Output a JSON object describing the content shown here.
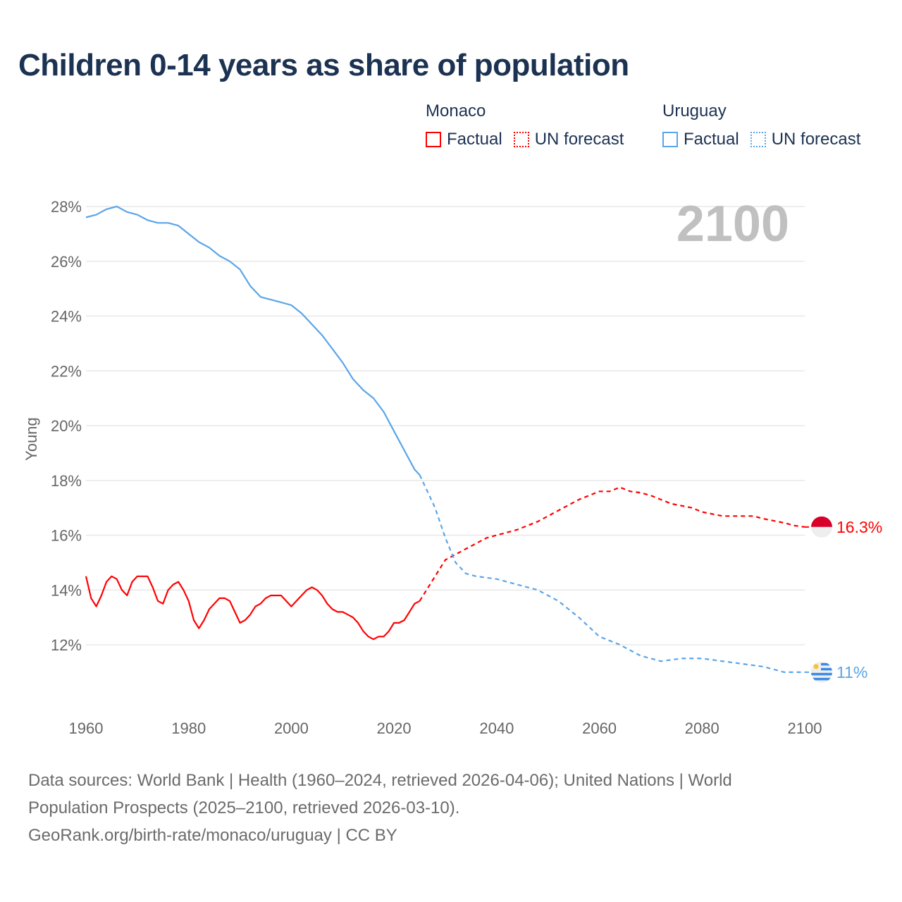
{
  "title": "Children 0-14 years as share of population",
  "legend": {
    "groups": [
      {
        "name": "Monaco",
        "color": "#ff0000",
        "items": [
          "Factual",
          "UN forecast"
        ]
      },
      {
        "name": "Uruguay",
        "color": "#5aa5e8",
        "items": [
          "Factual",
          "UN forecast"
        ]
      }
    ]
  },
  "year_label": "2100",
  "footer": {
    "line1": "Data sources: World Bank | Health (1960–2024, retrieved 2026-04-06); United Nations | World",
    "line2": "Population Prospects (2025–2100, retrieved 2026-03-10).",
    "line3": "GeoRank.org/birth-rate/monaco/uruguay | CC BY"
  },
  "chart_data": {
    "type": "line",
    "title": "Children 0-14 years as share of population",
    "xlabel": "",
    "ylabel": "Young",
    "xlim": [
      1960,
      2100
    ],
    "ylim": [
      10.5,
      28.5
    ],
    "x_ticks": [
      "1960",
      "1980",
      "2000",
      "2020",
      "2040",
      "2060",
      "2080",
      "2100"
    ],
    "y_ticks": [
      "12%",
      "14%",
      "16%",
      "18%",
      "20%",
      "22%",
      "24%",
      "26%",
      "28%"
    ],
    "grid": true,
    "series": [
      {
        "name": "Monaco",
        "color": "#ff0000",
        "end_label": "16.3%",
        "factual": {
          "x": [
            1960,
            1961,
            1962,
            1963,
            1964,
            1965,
            1966,
            1967,
            1968,
            1969,
            1970,
            1971,
            1972,
            1973,
            1974,
            1975,
            1976,
            1977,
            1978,
            1979,
            1980,
            1981,
            1982,
            1983,
            1984,
            1985,
            1986,
            1987,
            1988,
            1989,
            1990,
            1991,
            1992,
            1993,
            1994,
            1995,
            1996,
            1997,
            1998,
            1999,
            2000,
            2001,
            2002,
            2003,
            2004,
            2005,
            2006,
            2007,
            2008,
            2009,
            2010,
            2011,
            2012,
            2013,
            2014,
            2015,
            2016,
            2017,
            2018,
            2019,
            2020,
            2021,
            2022,
            2023,
            2024,
            2025
          ],
          "y": [
            14.5,
            13.7,
            13.4,
            13.8,
            14.3,
            14.5,
            14.4,
            14.0,
            13.8,
            14.3,
            14.5,
            14.5,
            14.5,
            14.1,
            13.6,
            13.5,
            14.0,
            14.2,
            14.3,
            14.0,
            13.6,
            12.9,
            12.6,
            12.9,
            13.3,
            13.5,
            13.7,
            13.7,
            13.6,
            13.2,
            12.8,
            12.9,
            13.1,
            13.4,
            13.5,
            13.7,
            13.8,
            13.8,
            13.8,
            13.6,
            13.4,
            13.6,
            13.8,
            14.0,
            14.1,
            14.0,
            13.8,
            13.5,
            13.3,
            13.2,
            13.2,
            13.1,
            13.0,
            12.8,
            12.5,
            12.3,
            12.2,
            12.3,
            12.3,
            12.5,
            12.8,
            12.8,
            12.9,
            13.2,
            13.5,
            13.6
          ]
        },
        "forecast": {
          "x": [
            2025,
            2026,
            2028,
            2030,
            2032,
            2034,
            2036,
            2038,
            2040,
            2044,
            2048,
            2052,
            2056,
            2060,
            2062,
            2064,
            2066,
            2068,
            2070,
            2072,
            2074,
            2078,
            2080,
            2084,
            2090,
            2092,
            2096,
            2098,
            2100
          ],
          "y": [
            13.6,
            13.9,
            14.5,
            15.1,
            15.3,
            15.5,
            15.7,
            15.9,
            16.0,
            16.2,
            16.5,
            16.9,
            17.3,
            17.6,
            17.6,
            17.75,
            17.6,
            17.55,
            17.45,
            17.3,
            17.15,
            17.0,
            16.85,
            16.7,
            16.7,
            16.6,
            16.45,
            16.35,
            16.3
          ]
        }
      },
      {
        "name": "Uruguay",
        "color": "#5aa5e8",
        "end_label": "11%",
        "factual": {
          "x": [
            1960,
            1962,
            1964,
            1966,
            1968,
            1970,
            1972,
            1974,
            1976,
            1978,
            1980,
            1982,
            1984,
            1986,
            1988,
            1990,
            1992,
            1994,
            1996,
            1998,
            2000,
            2002,
            2004,
            2006,
            2008,
            2010,
            2012,
            2014,
            2016,
            2018,
            2020,
            2022,
            2024,
            2025
          ],
          "y": [
            27.6,
            27.7,
            27.9,
            28.0,
            27.8,
            27.7,
            27.5,
            27.4,
            27.4,
            27.3,
            27.0,
            26.7,
            26.5,
            26.2,
            26.0,
            25.7,
            25.1,
            24.7,
            24.6,
            24.5,
            24.4,
            24.1,
            23.7,
            23.3,
            22.8,
            22.3,
            21.7,
            21.3,
            21.0,
            20.5,
            19.8,
            19.1,
            18.4,
            18.2
          ]
        },
        "forecast": {
          "x": [
            2025,
            2028,
            2030,
            2032,
            2034,
            2036,
            2040,
            2044,
            2048,
            2052,
            2056,
            2060,
            2064,
            2068,
            2072,
            2076,
            2080,
            2084,
            2088,
            2092,
            2096,
            2100
          ],
          "y": [
            18.2,
            17.0,
            15.9,
            15.0,
            14.6,
            14.5,
            14.4,
            14.2,
            14.0,
            13.6,
            13.0,
            12.3,
            12.0,
            11.6,
            11.4,
            11.5,
            11.5,
            11.4,
            11.3,
            11.2,
            11.0,
            11.0
          ]
        }
      }
    ]
  }
}
